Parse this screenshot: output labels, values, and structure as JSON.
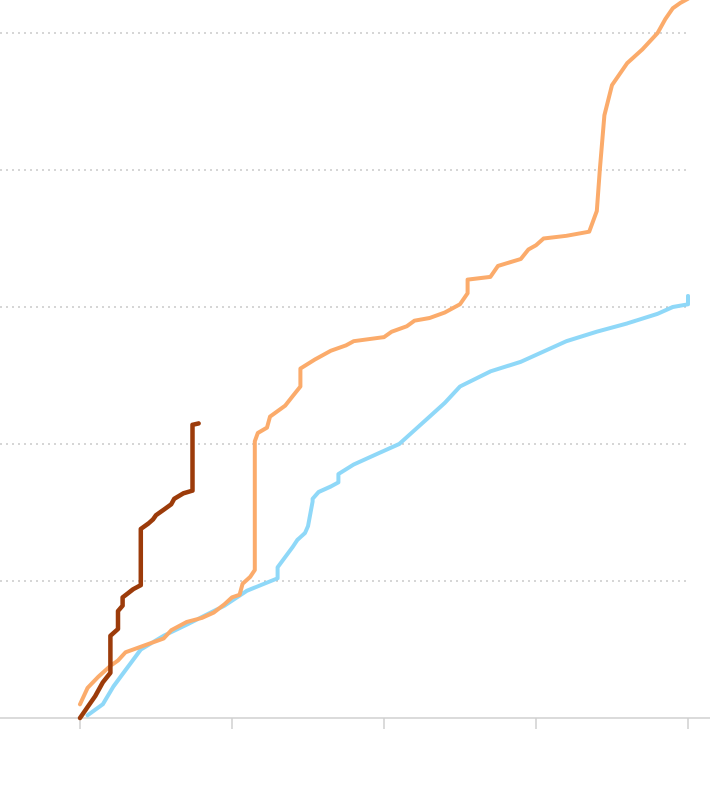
{
  "chart_data": {
    "type": "line",
    "title": "",
    "xlabel": "",
    "ylabel": "",
    "xlim": [
      0,
      4
    ],
    "ylim": [
      0,
      5
    ],
    "x_ticks": [
      0,
      1,
      2,
      3,
      4
    ],
    "y_gridlines": [
      1,
      2,
      3,
      4,
      5
    ],
    "grid": true,
    "legend": "none",
    "series": [
      {
        "color": "#8fd8f8",
        "width": 4,
        "points": [
          [
            0.05,
            0.02
          ],
          [
            0.15,
            0.1
          ],
          [
            0.22,
            0.23
          ],
          [
            0.3,
            0.35
          ],
          [
            0.4,
            0.5
          ],
          [
            0.55,
            0.6
          ],
          [
            0.7,
            0.68
          ],
          [
            0.95,
            0.82
          ],
          [
            1.1,
            0.93
          ],
          [
            1.3,
            1.02
          ],
          [
            1.3,
            1.1
          ],
          [
            1.4,
            1.25
          ],
          [
            1.43,
            1.3
          ],
          [
            1.45,
            1.32
          ],
          [
            1.48,
            1.35
          ],
          [
            1.5,
            1.4
          ],
          [
            1.53,
            1.58
          ],
          [
            1.53,
            1.6
          ],
          [
            1.57,
            1.65
          ],
          [
            1.65,
            1.69
          ],
          [
            1.7,
            1.72
          ],
          [
            1.7,
            1.78
          ],
          [
            1.8,
            1.85
          ],
          [
            2.0,
            1.95
          ],
          [
            2.1,
            2.0
          ],
          [
            2.2,
            2.1
          ],
          [
            2.3,
            2.2
          ],
          [
            2.4,
            2.3
          ],
          [
            2.5,
            2.42
          ],
          [
            2.7,
            2.53
          ],
          [
            2.9,
            2.6
          ],
          [
            3.0,
            2.65
          ],
          [
            3.2,
            2.75
          ],
          [
            3.4,
            2.82
          ],
          [
            3.6,
            2.88
          ],
          [
            3.8,
            2.95
          ],
          [
            3.9,
            3.0
          ],
          [
            4.0,
            3.02
          ],
          [
            4.0,
            3.08
          ]
        ]
      },
      {
        "color": "#fbab6b",
        "width": 4,
        "points": [
          [
            0.0,
            0.1
          ],
          [
            0.05,
            0.22
          ],
          [
            0.12,
            0.3
          ],
          [
            0.2,
            0.38
          ],
          [
            0.25,
            0.42
          ],
          [
            0.3,
            0.48
          ],
          [
            0.4,
            0.52
          ],
          [
            0.5,
            0.56
          ],
          [
            0.55,
            0.58
          ],
          [
            0.6,
            0.64
          ],
          [
            0.7,
            0.7
          ],
          [
            0.8,
            0.73
          ],
          [
            0.88,
            0.77
          ],
          [
            0.95,
            0.83
          ],
          [
            1.0,
            0.88
          ],
          [
            1.05,
            0.9
          ],
          [
            1.07,
            0.98
          ],
          [
            1.12,
            1.03
          ],
          [
            1.15,
            1.08
          ],
          [
            1.15,
            2.02
          ],
          [
            1.17,
            2.08
          ],
          [
            1.23,
            2.12
          ],
          [
            1.25,
            2.2
          ],
          [
            1.3,
            2.24
          ],
          [
            1.35,
            2.28
          ],
          [
            1.4,
            2.35
          ],
          [
            1.45,
            2.42
          ],
          [
            1.45,
            2.55
          ],
          [
            1.55,
            2.62
          ],
          [
            1.65,
            2.68
          ],
          [
            1.75,
            2.72
          ],
          [
            1.8,
            2.75
          ],
          [
            2.0,
            2.78
          ],
          [
            2.05,
            2.82
          ],
          [
            2.15,
            2.86
          ],
          [
            2.2,
            2.9
          ],
          [
            2.3,
            2.92
          ],
          [
            2.4,
            2.96
          ],
          [
            2.5,
            3.02
          ],
          [
            2.55,
            3.1
          ],
          [
            2.55,
            3.2
          ],
          [
            2.7,
            3.22
          ],
          [
            2.75,
            3.3
          ],
          [
            2.9,
            3.35
          ],
          [
            2.95,
            3.42
          ],
          [
            3.0,
            3.45
          ],
          [
            3.05,
            3.5
          ],
          [
            3.2,
            3.52
          ],
          [
            3.35,
            3.55
          ],
          [
            3.4,
            3.7
          ],
          [
            3.42,
            4.0
          ],
          [
            3.45,
            4.4
          ],
          [
            3.5,
            4.62
          ],
          [
            3.55,
            4.7
          ],
          [
            3.6,
            4.78
          ],
          [
            3.7,
            4.88
          ],
          [
            3.8,
            5.0
          ],
          [
            3.85,
            5.1
          ],
          [
            3.9,
            5.18
          ],
          [
            3.95,
            5.22
          ],
          [
            4.0,
            5.25
          ]
        ]
      },
      {
        "color": "#9c3b0a",
        "width": 4.5,
        "points": [
          [
            0.0,
            0.0
          ],
          [
            0.05,
            0.08
          ],
          [
            0.1,
            0.16
          ],
          [
            0.15,
            0.26
          ],
          [
            0.2,
            0.33
          ],
          [
            0.2,
            0.6
          ],
          [
            0.25,
            0.65
          ],
          [
            0.25,
            0.78
          ],
          [
            0.28,
            0.82
          ],
          [
            0.28,
            0.88
          ],
          [
            0.35,
            0.94
          ],
          [
            0.4,
            0.97
          ],
          [
            0.4,
            1.38
          ],
          [
            0.45,
            1.42
          ],
          [
            0.48,
            1.45
          ],
          [
            0.5,
            1.48
          ],
          [
            0.55,
            1.52
          ],
          [
            0.6,
            1.56
          ],
          [
            0.62,
            1.6
          ],
          [
            0.68,
            1.64
          ],
          [
            0.74,
            1.66
          ],
          [
            0.74,
            2.14
          ],
          [
            0.78,
            2.15
          ]
        ]
      }
    ]
  }
}
